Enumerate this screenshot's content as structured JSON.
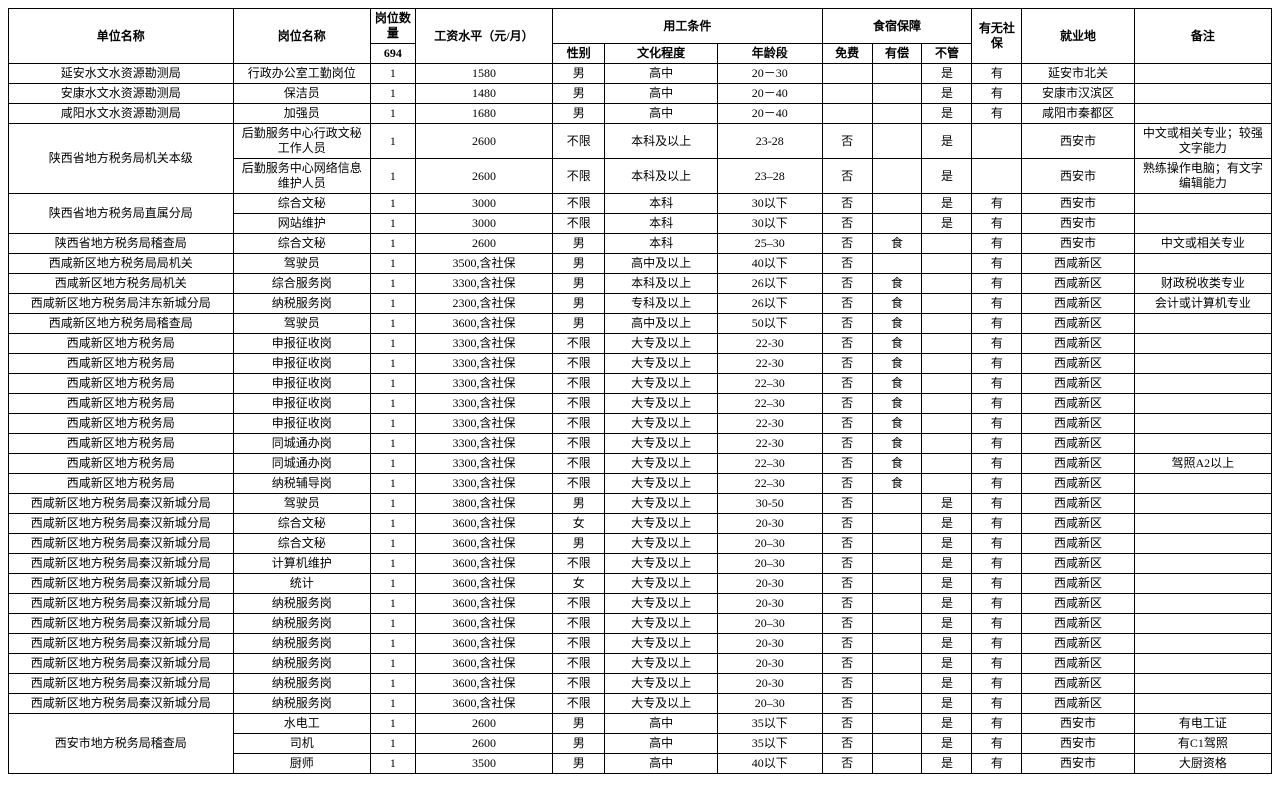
{
  "headers": {
    "unit": "单位名称",
    "post": "岗位名称",
    "count_label": "岗位数量",
    "count_total": "694",
    "salary": "工资水平（元/月）",
    "cond_group": "用工条件",
    "gender": "性别",
    "edu": "文化程度",
    "age": "年龄段",
    "board_group": "食宿保障",
    "free": "免费",
    "paid": "有偿",
    "none": "不管",
    "social": "有无社保",
    "loc": "就业地",
    "remark": "备注"
  },
  "style": {
    "font_family": "SimSun",
    "font_size_pt": 9,
    "border_color": "#000000",
    "background_color": "#ffffff",
    "text_color": "#000000"
  },
  "rows": [
    {
      "unit": "延安水文水资源勘测局",
      "unit_span": 1,
      "post": "行政办公室工勤岗位",
      "count": "1",
      "salary": "1580",
      "gender": "男",
      "edu": "高中",
      "age": "20－30",
      "free": "",
      "paid": "",
      "none": "是",
      "social": "有",
      "loc": "延安市北关",
      "remark": ""
    },
    {
      "unit": "安康水文水资源勘测局",
      "unit_span": 1,
      "post": "保洁员",
      "count": "1",
      "salary": "1480",
      "gender": "男",
      "edu": "高中",
      "age": "20－40",
      "free": "",
      "paid": "",
      "none": "是",
      "social": "有",
      "loc": "安康市汉滨区",
      "remark": ""
    },
    {
      "unit": "咸阳水文水资源勘测局",
      "unit_span": 1,
      "post": "加强员",
      "count": "1",
      "salary": "1680",
      "gender": "男",
      "edu": "高中",
      "age": "20－40",
      "free": "",
      "paid": "",
      "none": "是",
      "social": "有",
      "loc": "咸阳市秦都区",
      "remark": ""
    },
    {
      "unit": "陕西省地方税务局机关本级",
      "unit_span": 2,
      "post": "后勤服务中心行政文秘工作人员",
      "count": "1",
      "salary": "2600",
      "gender": "不限",
      "edu": "本科及以上",
      "age": "23-28",
      "free": "否",
      "paid": "",
      "none": "是",
      "social": "",
      "loc": "西安市",
      "remark": "中文或相关专业；较强文字能力"
    },
    {
      "unit": null,
      "post": "后勤服务中心网络信息维护人员",
      "count": "1",
      "salary": "2600",
      "gender": "不限",
      "edu": "本科及以上",
      "age": "23–28",
      "free": "否",
      "paid": "",
      "none": "是",
      "social": "",
      "loc": "西安市",
      "remark": "熟练操作电脑；有文字编辑能力"
    },
    {
      "unit": "陕西省地方税务局直属分局",
      "unit_span": 2,
      "post": "综合文秘",
      "count": "1",
      "salary": "3000",
      "gender": "不限",
      "edu": "本科",
      "age": "30以下",
      "free": "否",
      "paid": "",
      "none": "是",
      "social": "有",
      "loc": "西安市",
      "remark": ""
    },
    {
      "unit": null,
      "post": "网站维护",
      "count": "1",
      "salary": "3000",
      "gender": "不限",
      "edu": "本科",
      "age": "30以下",
      "free": "否",
      "paid": "",
      "none": "是",
      "social": "有",
      "loc": "西安市",
      "remark": ""
    },
    {
      "unit": "陕西省地方税务局稽查局",
      "unit_span": 1,
      "post": "综合文秘",
      "count": "1",
      "salary": "2600",
      "gender": "男",
      "edu": "本科",
      "age": "25–30",
      "free": "否",
      "paid": "食",
      "none": "",
      "social": "有",
      "loc": "西安市",
      "remark": "中文或相关专业"
    },
    {
      "unit": "西咸新区地方税务局局机关",
      "unit_span": 1,
      "post": "驾驶员",
      "count": "1",
      "salary": "3500,含社保",
      "gender": "男",
      "edu": "高中及以上",
      "age": "40以下",
      "free": "否",
      "paid": "",
      "none": "",
      "social": "有",
      "loc": "西咸新区",
      "remark": ""
    },
    {
      "unit": "西咸新区地方税务局机关",
      "unit_span": 1,
      "post": "综合服务岗",
      "count": "1",
      "salary": "3300,含社保",
      "gender": "男",
      "edu": "本科及以上",
      "age": "26以下",
      "free": "否",
      "paid": "食",
      "none": "",
      "social": "有",
      "loc": "西咸新区",
      "remark": "财政税收类专业"
    },
    {
      "unit": "西咸新区地方税务局沣东新城分局",
      "unit_span": 1,
      "post": "纳税服务岗",
      "count": "1",
      "salary": "2300,含社保",
      "gender": "男",
      "edu": "专科及以上",
      "age": "26以下",
      "free": "否",
      "paid": "食",
      "none": "",
      "social": "有",
      "loc": "西咸新区",
      "remark": "会计或计算机专业"
    },
    {
      "unit": "西咸新区地方税务局稽查局",
      "unit_span": 1,
      "post": "驾驶员",
      "count": "1",
      "salary": "3600,含社保",
      "gender": "男",
      "edu": "高中及以上",
      "age": "50以下",
      "free": "否",
      "paid": "食",
      "none": "",
      "social": "有",
      "loc": "西咸新区",
      "remark": ""
    },
    {
      "unit": "西咸新区地方税务局",
      "unit_span": 1,
      "post": "申报征收岗",
      "count": "1",
      "salary": "3300,含社保",
      "gender": "不限",
      "edu": "大专及以上",
      "age": "22-30",
      "free": "否",
      "paid": "食",
      "none": "",
      "social": "有",
      "loc": "西咸新区",
      "remark": ""
    },
    {
      "unit": "西咸新区地方税务局",
      "unit_span": 1,
      "post": "申报征收岗",
      "count": "1",
      "salary": "3300,含社保",
      "gender": "不限",
      "edu": "大专及以上",
      "age": "22-30",
      "free": "否",
      "paid": "食",
      "none": "",
      "social": "有",
      "loc": "西咸新区",
      "remark": ""
    },
    {
      "unit": "西咸新区地方税务局",
      "unit_span": 1,
      "post": "申报征收岗",
      "count": "1",
      "salary": "3300,含社保",
      "gender": "不限",
      "edu": "大专及以上",
      "age": "22–30",
      "free": "否",
      "paid": "食",
      "none": "",
      "social": "有",
      "loc": "西咸新区",
      "remark": ""
    },
    {
      "unit": "西咸新区地方税务局",
      "unit_span": 1,
      "post": "申报征收岗",
      "count": "1",
      "salary": "3300,含社保",
      "gender": "不限",
      "edu": "大专及以上",
      "age": "22–30",
      "free": "否",
      "paid": "食",
      "none": "",
      "social": "有",
      "loc": "西咸新区",
      "remark": ""
    },
    {
      "unit": "西咸新区地方税务局",
      "unit_span": 1,
      "post": "申报征收岗",
      "count": "1",
      "salary": "3300,含社保",
      "gender": "不限",
      "edu": "大专及以上",
      "age": "22-30",
      "free": "否",
      "paid": "食",
      "none": "",
      "social": "有",
      "loc": "西咸新区",
      "remark": ""
    },
    {
      "unit": "西咸新区地方税务局",
      "unit_span": 1,
      "post": "同城通办岗",
      "count": "1",
      "salary": "3300,含社保",
      "gender": "不限",
      "edu": "大专及以上",
      "age": "22-30",
      "free": "否",
      "paid": "食",
      "none": "",
      "social": "有",
      "loc": "西咸新区",
      "remark": ""
    },
    {
      "unit": "西咸新区地方税务局",
      "unit_span": 1,
      "post": "同城通办岗",
      "count": "1",
      "salary": "3300,含社保",
      "gender": "不限",
      "edu": "大专及以上",
      "age": "22–30",
      "free": "否",
      "paid": "食",
      "none": "",
      "social": "有",
      "loc": "西咸新区",
      "remark": "驾照A2以上"
    },
    {
      "unit": "西咸新区地方税务局",
      "unit_span": 1,
      "post": "纳税辅导岗",
      "count": "1",
      "salary": "3300,含社保",
      "gender": "不限",
      "edu": "大专及以上",
      "age": "22–30",
      "free": "否",
      "paid": "食",
      "none": "",
      "social": "有",
      "loc": "西咸新区",
      "remark": ""
    },
    {
      "unit": "西咸新区地方税务局秦汉新城分局",
      "unit_span": 1,
      "post": "驾驶员",
      "count": "1",
      "salary": "3800,含社保",
      "gender": "男",
      "edu": "大专及以上",
      "age": "30-50",
      "free": "否",
      "paid": "",
      "none": "是",
      "social": "有",
      "loc": "西咸新区",
      "remark": ""
    },
    {
      "unit": "西咸新区地方税务局秦汉新城分局",
      "unit_span": 1,
      "post": "综合文秘",
      "count": "1",
      "salary": "3600,含社保",
      "gender": "女",
      "edu": "大专及以上",
      "age": "20-30",
      "free": "否",
      "paid": "",
      "none": "是",
      "social": "有",
      "loc": "西咸新区",
      "remark": ""
    },
    {
      "unit": "西咸新区地方税务局秦汉新城分局",
      "unit_span": 1,
      "post": "综合文秘",
      "count": "1",
      "salary": "3600,含社保",
      "gender": "男",
      "edu": "大专及以上",
      "age": "20–30",
      "free": "否",
      "paid": "",
      "none": "是",
      "social": "有",
      "loc": "西咸新区",
      "remark": ""
    },
    {
      "unit": "西咸新区地方税务局秦汉新城分局",
      "unit_span": 1,
      "post": "计算机维护",
      "count": "1",
      "salary": "3600,含社保",
      "gender": "不限",
      "edu": "大专及以上",
      "age": "20–30",
      "free": "否",
      "paid": "",
      "none": "是",
      "social": "有",
      "loc": "西咸新区",
      "remark": ""
    },
    {
      "unit": "西咸新区地方税务局秦汉新城分局",
      "unit_span": 1,
      "post": "统计",
      "count": "1",
      "salary": "3600,含社保",
      "gender": "女",
      "edu": "大专及以上",
      "age": "20-30",
      "free": "否",
      "paid": "",
      "none": "是",
      "social": "有",
      "loc": "西咸新区",
      "remark": ""
    },
    {
      "unit": "西咸新区地方税务局秦汉新城分局",
      "unit_span": 1,
      "post": "纳税服务岗",
      "count": "1",
      "salary": "3600,含社保",
      "gender": "不限",
      "edu": "大专及以上",
      "age": "20-30",
      "free": "否",
      "paid": "",
      "none": "是",
      "social": "有",
      "loc": "西咸新区",
      "remark": ""
    },
    {
      "unit": "西咸新区地方税务局秦汉新城分局",
      "unit_span": 1,
      "post": "纳税服务岗",
      "count": "1",
      "salary": "3600,含社保",
      "gender": "不限",
      "edu": "大专及以上",
      "age": "20–30",
      "free": "否",
      "paid": "",
      "none": "是",
      "social": "有",
      "loc": "西咸新区",
      "remark": ""
    },
    {
      "unit": "西咸新区地方税务局秦汉新城分局",
      "unit_span": 1,
      "post": "纳税服务岗",
      "count": "1",
      "salary": "3600,含社保",
      "gender": "不限",
      "edu": "大专及以上",
      "age": "20-30",
      "free": "否",
      "paid": "",
      "none": "是",
      "social": "有",
      "loc": "西咸新区",
      "remark": ""
    },
    {
      "unit": "西咸新区地方税务局秦汉新城分局",
      "unit_span": 1,
      "post": "纳税服务岗",
      "count": "1",
      "salary": "3600,含社保",
      "gender": "不限",
      "edu": "大专及以上",
      "age": "20-30",
      "free": "否",
      "paid": "",
      "none": "是",
      "social": "有",
      "loc": "西咸新区",
      "remark": ""
    },
    {
      "unit": "西咸新区地方税务局秦汉新城分局",
      "unit_span": 1,
      "post": "纳税服务岗",
      "count": "1",
      "salary": "3600,含社保",
      "gender": "不限",
      "edu": "大专及以上",
      "age": "20-30",
      "free": "否",
      "paid": "",
      "none": "是",
      "social": "有",
      "loc": "西咸新区",
      "remark": ""
    },
    {
      "unit": "西咸新区地方税务局秦汉新城分局",
      "unit_span": 1,
      "post": "纳税服务岗",
      "count": "1",
      "salary": "3600,含社保",
      "gender": "不限",
      "edu": "大专及以上",
      "age": "20–30",
      "free": "否",
      "paid": "",
      "none": "是",
      "social": "有",
      "loc": "西咸新区",
      "remark": ""
    },
    {
      "unit": "西安市地方税务局稽查局",
      "unit_span": 3,
      "post": "水电工",
      "count": "1",
      "salary": "2600",
      "gender": "男",
      "edu": "高中",
      "age": "35以下",
      "free": "否",
      "paid": "",
      "none": "是",
      "social": "有",
      "loc": "西安市",
      "remark": "有电工证"
    },
    {
      "unit": null,
      "post": "司机",
      "count": "1",
      "salary": "2600",
      "gender": "男",
      "edu": "高中",
      "age": "35以下",
      "free": "否",
      "paid": "",
      "none": "是",
      "social": "有",
      "loc": "西安市",
      "remark": "有C1驾照"
    },
    {
      "unit": null,
      "post": "厨师",
      "count": "1",
      "salary": "3500",
      "gender": "男",
      "edu": "高中",
      "age": "40以下",
      "free": "否",
      "paid": "",
      "none": "是",
      "social": "有",
      "loc": "西安市",
      "remark": "大厨资格"
    }
  ]
}
